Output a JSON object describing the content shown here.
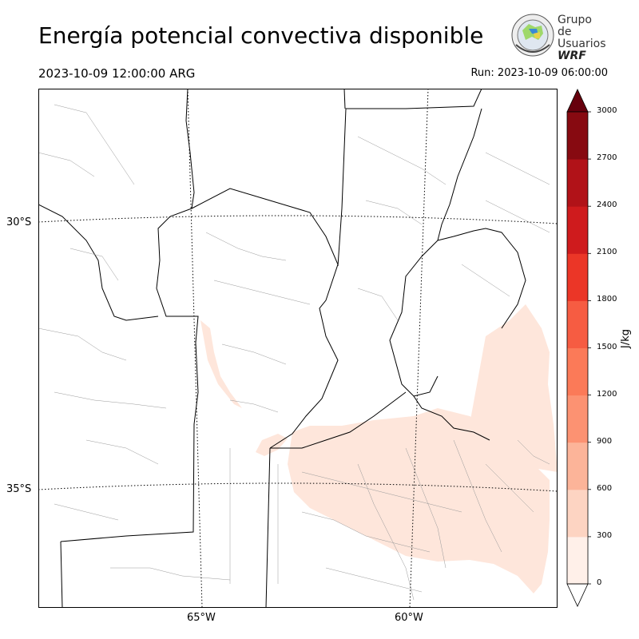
{
  "header": {
    "title": "Energía potencial convectiva disponible",
    "valid_time": "2023-10-09 12:00:00 ARG",
    "run_time": "Run: 2023-10-09 06:00:00"
  },
  "logo": {
    "line1": "Grupo de",
    "line2": "Usuarios",
    "line3": "WRF"
  },
  "map": {
    "lat_labels": [
      "30°S",
      "35°S"
    ],
    "lon_labels": [
      "65°W",
      "60°W"
    ],
    "field_color": "#fee6db",
    "boundary_color": "#000000",
    "subdivision_color": "#999999"
  },
  "colorbar": {
    "unit": "J/kg",
    "ticks": [
      "0",
      "300",
      "600",
      "900",
      "1200",
      "1500",
      "1800",
      "2100",
      "2400",
      "2700",
      "3000"
    ],
    "colors": [
      "#fff0e9",
      "#fdd4c2",
      "#fcb499",
      "#fc9272",
      "#fb7a58",
      "#f65c42",
      "#eb3627",
      "#cf1b1d",
      "#b11218",
      "#870a11"
    ],
    "over_color": "#67000d",
    "under_color": "#ffffff"
  }
}
